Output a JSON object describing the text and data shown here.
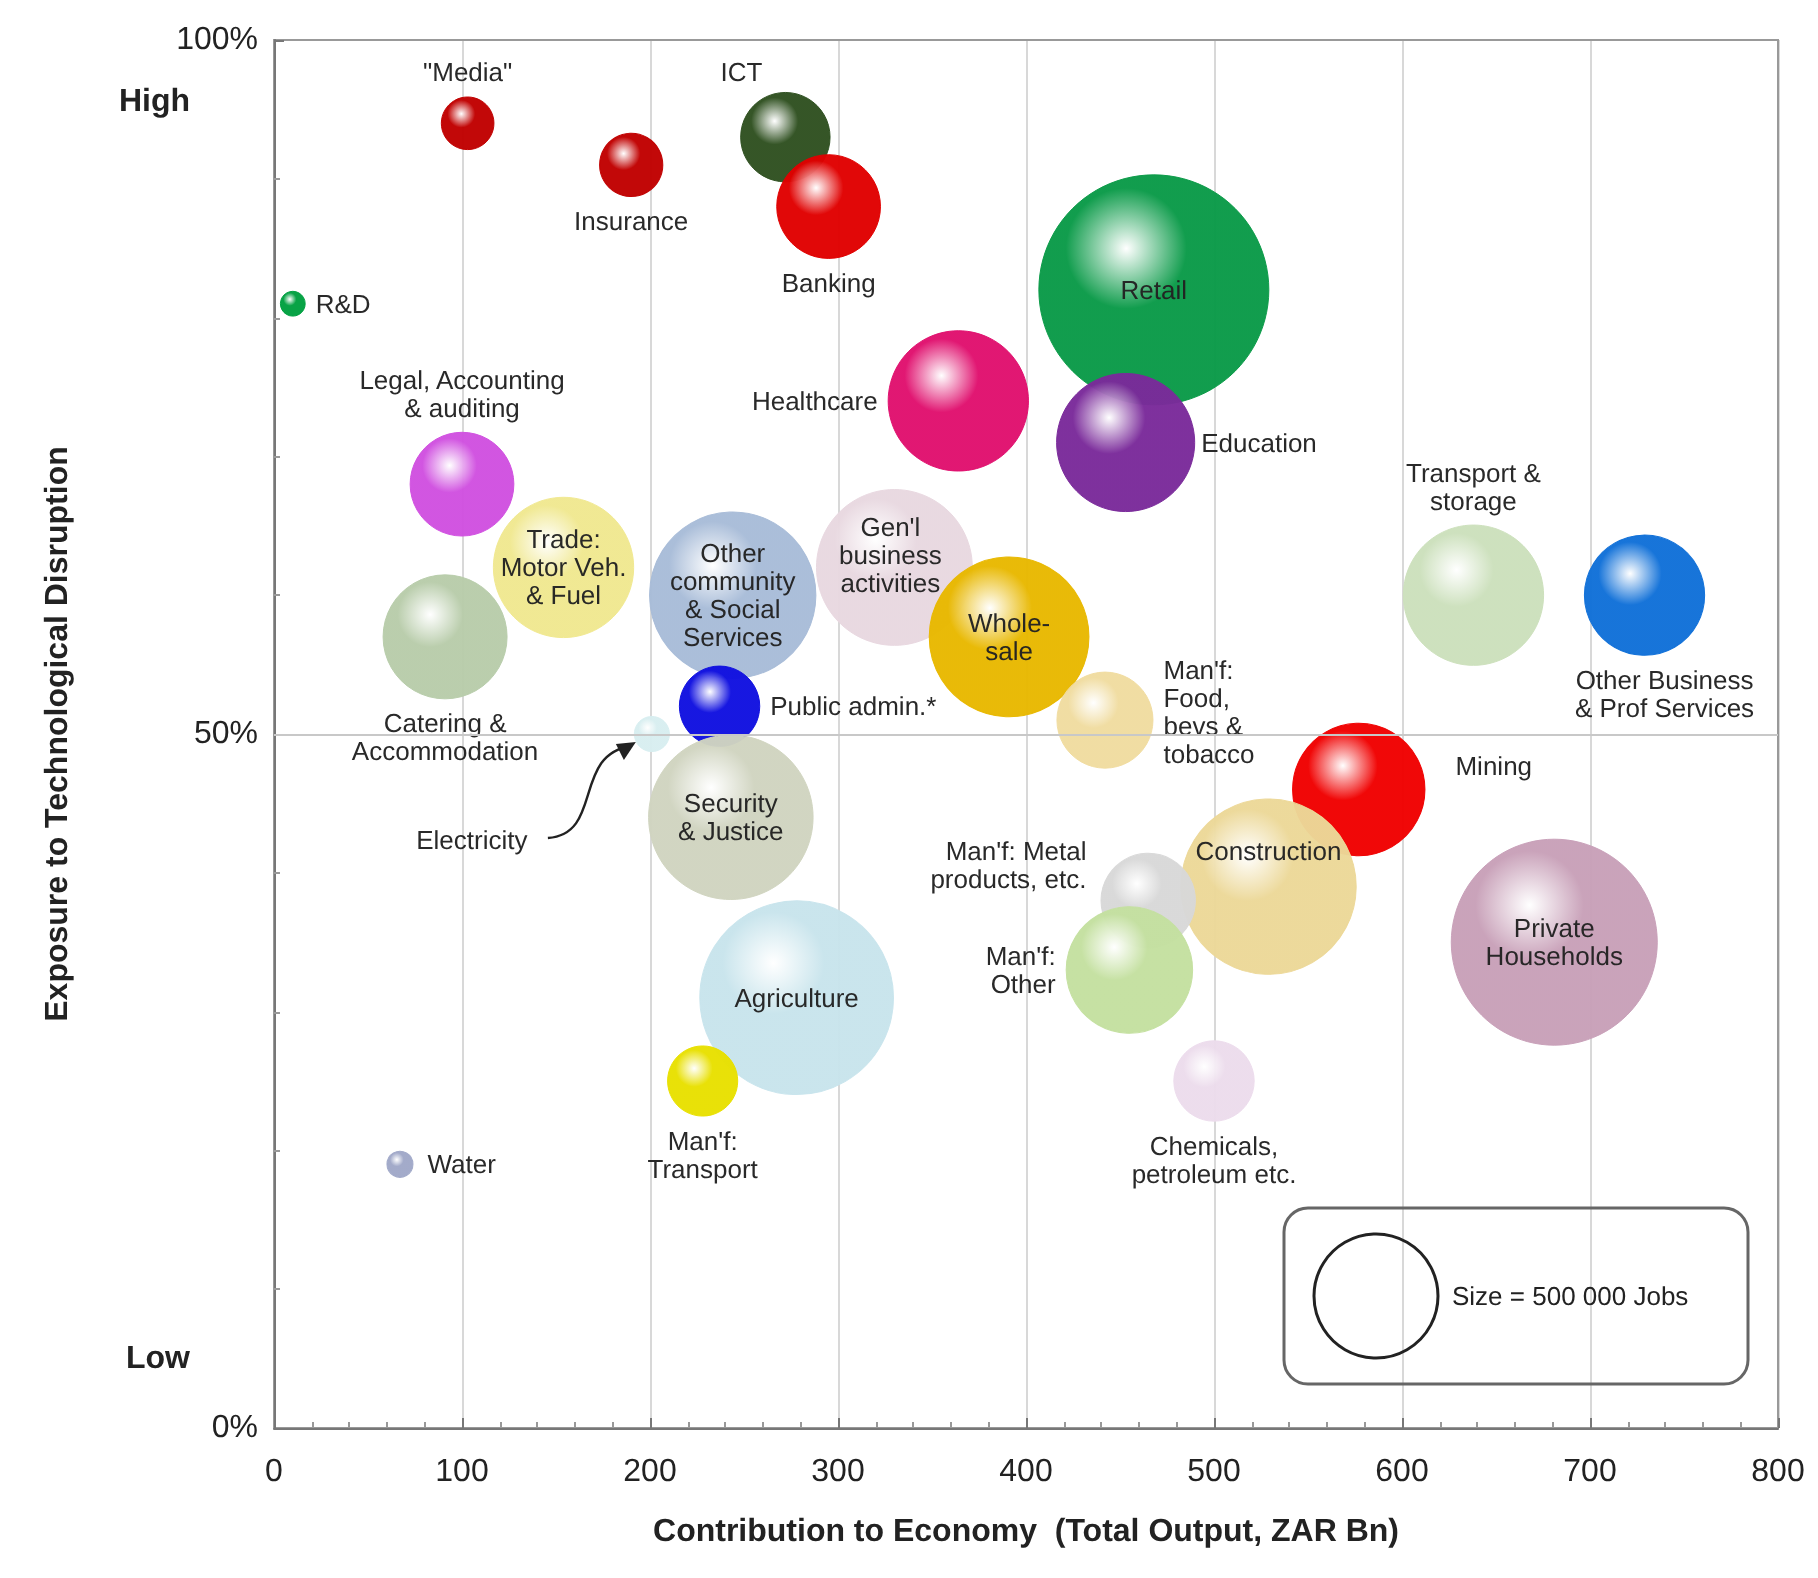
{
  "chart_data": {
    "type": "bubble",
    "xlabel": "Contribution to Economy  (Total Output, ZAR Bn)",
    "ylabel": "Exposure to Technological Disruption",
    "xlim": [
      0,
      800
    ],
    "ylim": [
      0,
      100
    ],
    "xticks": [
      0,
      {
        "value": 20,
        "label": null
      },
      {
        "value": 40,
        "label": null
      },
      {
        "value": 60,
        "label": null
      },
      {
        "value": 80,
        "label": null
      },
      100,
      {
        "value": 120,
        "label": null
      },
      {
        "value": 140,
        "label": null
      },
      {
        "value": 160,
        "label": null
      },
      {
        "value": 180,
        "label": null
      },
      200,
      {
        "value": 220,
        "label": null
      },
      {
        "value": 240,
        "label": null
      },
      {
        "value": 260,
        "label": null
      },
      {
        "value": 280,
        "label": null
      },
      300,
      {
        "value": 320,
        "label": null
      },
      {
        "value": 340,
        "label": null
      },
      {
        "value": 360,
        "label": null
      },
      {
        "value": 380,
        "label": null
      },
      400,
      {
        "value": 420,
        "label": null
      },
      {
        "value": 440,
        "label": null
      },
      {
        "value": 460,
        "label": null
      },
      {
        "value": 480,
        "label": null
      },
      500,
      {
        "value": 520,
        "label": null
      },
      {
        "value": 540,
        "label": null
      },
      {
        "value": 560,
        "label": null
      },
      {
        "value": 580,
        "label": null
      },
      600,
      {
        "value": 620,
        "label": null
      },
      {
        "value": 640,
        "label": null
      },
      {
        "value": 660,
        "label": null
      },
      {
        "value": 680,
        "label": null
      },
      700,
      {
        "value": 720,
        "label": null
      },
      {
        "value": 740,
        "label": null
      },
      {
        "value": 760,
        "label": null
      },
      {
        "value": 780,
        "label": null
      },
      800
    ],
    "yticks": [
      {
        "value": 0,
        "label": "0%"
      },
      {
        "value": 10,
        "label": null
      },
      {
        "value": 20,
        "label": null
      },
      {
        "value": 30,
        "label": null
      },
      {
        "value": 40,
        "label": null
      },
      {
        "value": 50,
        "label": "50%"
      },
      {
        "value": 60,
        "label": null
      },
      {
        "value": 70,
        "label": null
      },
      {
        "value": 80,
        "label": null
      },
      {
        "value": 90,
        "label": null
      },
      {
        "value": 100,
        "label": "100%"
      }
    ],
    "grid": "x",
    "ref_lines": [
      {
        "axis": "y",
        "value": 50,
        "color": "#c8c8c8"
      }
    ],
    "annotations": [
      "High",
      "Low"
    ],
    "size_legend": [
      {
        "value": 500000,
        "label": "Size = 500 000 Jobs"
      }
    ],
    "series": [
      {
        "name": "\"Media\"",
        "color": "#c00000",
        "x": [
          103
        ],
        "values": [
          94
        ],
        "sizes": [
          90000
        ]
      },
      {
        "name": "Insurance",
        "color": "#c00000",
        "x": [
          190
        ],
        "values": [
          91
        ],
        "sizes": [
          130000
        ]
      },
      {
        "name": "ICT",
        "color": "#2f5020",
        "x": [
          272
        ],
        "values": [
          93
        ],
        "sizes": [
          260000
        ]
      },
      {
        "name": "Banking",
        "color": "#e00000",
        "x": [
          295
        ],
        "values": [
          88
        ],
        "sizes": [
          350000
        ]
      },
      {
        "name": "R&D",
        "color": "#00a040",
        "x": [
          10
        ],
        "values": [
          81
        ],
        "sizes": [
          20000
        ]
      },
      {
        "name": "Retail",
        "color": "#0a9a48",
        "x": [
          468
        ],
        "values": [
          82
        ],
        "sizes": [
          1720000
        ]
      },
      {
        "name": "Healthcare",
        "color": "#e0106e",
        "x": [
          364
        ],
        "values": [
          74
        ],
        "sizes": [
          640000
        ]
      },
      {
        "name": "Education",
        "color": "#7a2a9a",
        "x": [
          453
        ],
        "values": [
          71
        ],
        "sizes": [
          620000
        ]
      },
      {
        "name": "Legal, Accounting\n& auditing",
        "color": "#d050e0",
        "x": [
          100
        ],
        "values": [
          68
        ],
        "sizes": [
          350000
        ]
      },
      {
        "name": "Trade:\nMotor Veh.\n& Fuel",
        "color": "#f0e890",
        "x": [
          154
        ],
        "values": [
          62
        ],
        "sizes": [
          640000
        ]
      },
      {
        "name": "Catering &\nAccommodation",
        "color": "#b8ccaa",
        "x": [
          91
        ],
        "values": [
          57
        ],
        "sizes": [
          500000
        ]
      },
      {
        "name": "Other\ncommunity\n& Social\nServices",
        "color": "#a8bcd8",
        "x": [
          244
        ],
        "values": [
          60
        ],
        "sizes": [
          900000
        ]
      },
      {
        "name": "Gen'l\nbusiness\nactivities",
        "color": "#e8d8e0",
        "x": [
          330
        ],
        "values": [
          62
        ],
        "sizes": [
          790000
        ]
      },
      {
        "name": "Whole-\nsale",
        "color": "#e8b800",
        "x": [
          391
        ],
        "values": [
          57
        ],
        "sizes": [
          830000
        ]
      },
      {
        "name": "Public admin.*",
        "color": "#1010e0",
        "x": [
          237
        ],
        "values": [
          52
        ],
        "sizes": [
          210000
        ]
      },
      {
        "name": "Electricity",
        "color": "#d8eef0",
        "x": [
          201
        ],
        "values": [
          50
        ],
        "sizes": [
          40000
        ]
      },
      {
        "name": "Man'f:\nFood,\nbevs &\ntobacco",
        "color": "#f0dca0",
        "x": [
          442
        ],
        "values": [
          51
        ],
        "sizes": [
          300000
        ]
      },
      {
        "name": "Transport &\nstorage",
        "color": "#cce0bc",
        "x": [
          638
        ],
        "values": [
          60
        ],
        "sizes": [
          640000
        ]
      },
      {
        "name": "Other Business\n& Prof Services",
        "color": "#1070d8",
        "x": [
          729
        ],
        "values": [
          60
        ],
        "sizes": [
          470000
        ]
      },
      {
        "name": "Mining",
        "color": "#f00000",
        "x": [
          577
        ],
        "values": [
          46
        ],
        "sizes": [
          570000
        ]
      },
      {
        "name": "Construction",
        "color": "#ecd898",
        "x": [
          529
        ],
        "values": [
          39
        ],
        "sizes": [
          1000000
        ]
      },
      {
        "name": "Man'f: Metal\nproducts, etc.",
        "color": "#d8d8d8",
        "x": [
          465
        ],
        "values": [
          38
        ],
        "sizes": [
          290000
        ]
      },
      {
        "name": "Man'f:\nOther",
        "color": "#c4e0a0",
        "x": [
          455
        ],
        "values": [
          33
        ],
        "sizes": [
          520000
        ]
      },
      {
        "name": "Private\nHouseholds",
        "color": "#c8a0b8",
        "x": [
          681
        ],
        "values": [
          35
        ],
        "sizes": [
          1380000
        ]
      },
      {
        "name": "Chemicals,\npetroleum etc.",
        "color": "#ecdcec",
        "x": [
          500
        ],
        "values": [
          25
        ],
        "sizes": [
          210000
        ]
      },
      {
        "name": "Security\n& Justice",
        "color": "#d0d4c0",
        "x": [
          243
        ],
        "values": [
          44
        ],
        "sizes": [
          880000
        ]
      },
      {
        "name": "Agriculture",
        "color": "#c8e4ec",
        "x": [
          278
        ],
        "values": [
          31
        ],
        "sizes": [
          1220000
        ]
      },
      {
        "name": "Man'f:\nTransport",
        "color": "#e8e000",
        "x": [
          228
        ],
        "values": [
          25
        ],
        "sizes": [
          160000
        ]
      },
      {
        "name": "Water",
        "color": "#a0a8c8",
        "x": [
          67
        ],
        "values": [
          19
        ],
        "sizes": [
          22000
        ]
      }
    ]
  }
}
